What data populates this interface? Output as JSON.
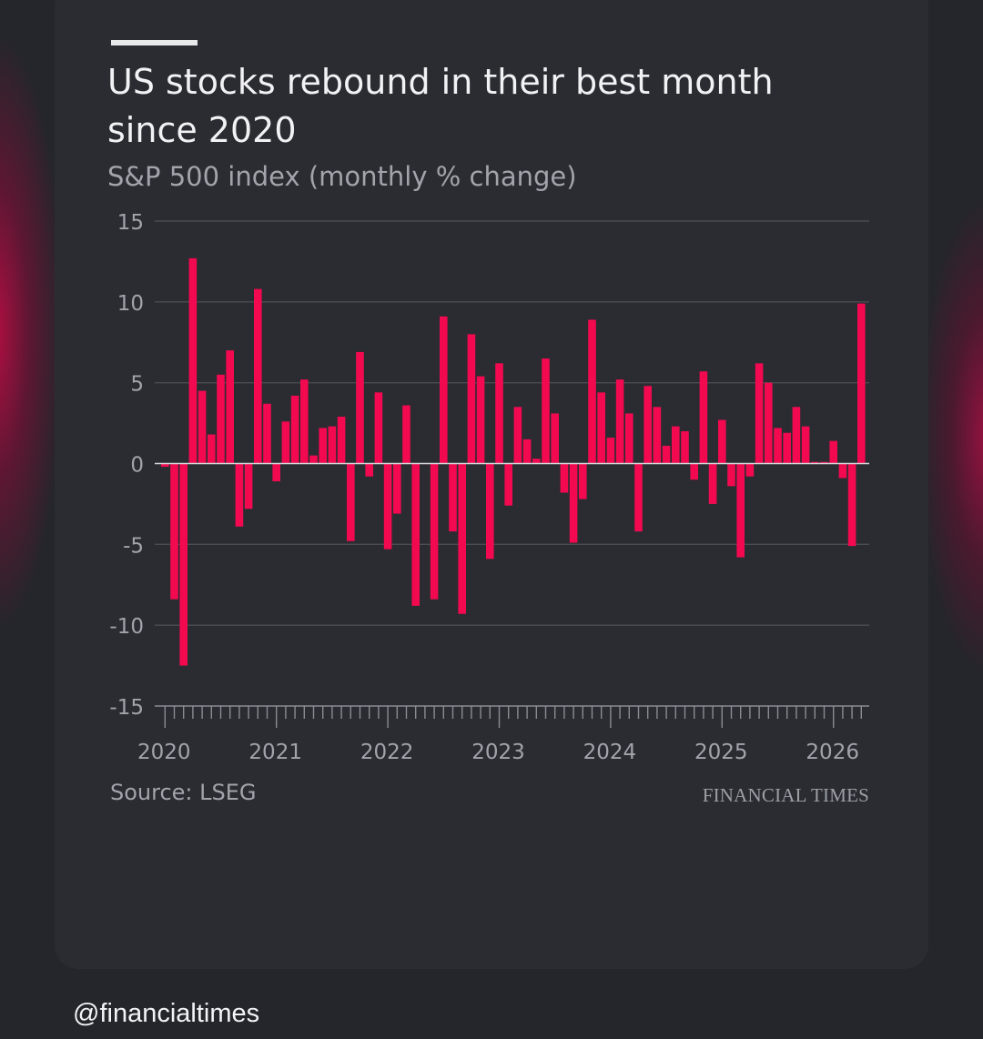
{
  "title": "US stocks rebound in their best month since 2020",
  "subtitle": "S&P 500 index (monthly % change)",
  "source": "Source: LSEG",
  "brand": "FINANCIAL TIMES",
  "handle": "@financialtimes",
  "colors": {
    "bar": "#f2094f",
    "grid": "#4a4c53",
    "text": "#a2a4ab",
    "background": "#2a2c32"
  },
  "chart_data": {
    "type": "bar",
    "title": "US stocks rebound in their best month since 2020",
    "subtitle": "S&P 500 index (monthly % change)",
    "xlabel": "",
    "ylabel": "",
    "ylim": [
      -15,
      15
    ],
    "yticks": [
      15,
      10,
      5,
      0,
      -5,
      -10,
      -15
    ],
    "xticks": [
      "2020",
      "2021",
      "2022",
      "2023",
      "2024",
      "2025",
      "2026"
    ],
    "grid": true,
    "start": "2020-01",
    "months": [
      "2020-01",
      "2020-02",
      "2020-03",
      "2020-04",
      "2020-05",
      "2020-06",
      "2020-07",
      "2020-08",
      "2020-09",
      "2020-10",
      "2020-11",
      "2020-12",
      "2021-01",
      "2021-02",
      "2021-03",
      "2021-04",
      "2021-05",
      "2021-06",
      "2021-07",
      "2021-08",
      "2021-09",
      "2021-10",
      "2021-11",
      "2021-12",
      "2022-01",
      "2022-02",
      "2022-03",
      "2022-04",
      "2022-05",
      "2022-06",
      "2022-07",
      "2022-08",
      "2022-09",
      "2022-10",
      "2022-11",
      "2022-12",
      "2023-01",
      "2023-02",
      "2023-03",
      "2023-04",
      "2023-05",
      "2023-06",
      "2023-07",
      "2023-08",
      "2023-09",
      "2023-10",
      "2023-11",
      "2023-12",
      "2024-01",
      "2024-02",
      "2024-03",
      "2024-04",
      "2024-05",
      "2024-06",
      "2024-07",
      "2024-08",
      "2024-09",
      "2024-10",
      "2024-11",
      "2024-12",
      "2025-01",
      "2025-02",
      "2025-03",
      "2025-04",
      "2025-05",
      "2025-06",
      "2025-07",
      "2025-08",
      "2025-09",
      "2025-10",
      "2025-11",
      "2025-12",
      "2026-01",
      "2026-02",
      "2026-03",
      "2026-04"
    ],
    "values": [
      -0.2,
      -8.4,
      -12.5,
      12.7,
      4.5,
      1.8,
      5.5,
      7.0,
      -3.9,
      -2.8,
      10.8,
      3.7,
      -1.1,
      2.6,
      4.2,
      5.2,
      0.5,
      2.2,
      2.3,
      2.9,
      -4.8,
      6.9,
      -0.8,
      4.4,
      -5.3,
      -3.1,
      3.6,
      -8.8,
      0.0,
      -8.4,
      9.1,
      -4.2,
      -9.3,
      8.0,
      5.4,
      -5.9,
      6.2,
      -2.6,
      3.5,
      1.5,
      0.3,
      6.5,
      3.1,
      -1.8,
      -4.9,
      -2.2,
      8.9,
      4.4,
      1.6,
      5.2,
      3.1,
      -4.2,
      4.8,
      3.5,
      1.1,
      2.3,
      2.0,
      -1.0,
      5.7,
      -2.5,
      2.7,
      -1.4,
      -5.8,
      -0.8,
      6.2,
      5.0,
      2.2,
      1.9,
      3.5,
      2.3,
      0.1,
      0.1,
      1.4,
      -0.9,
      -5.1,
      9.9
    ]
  }
}
